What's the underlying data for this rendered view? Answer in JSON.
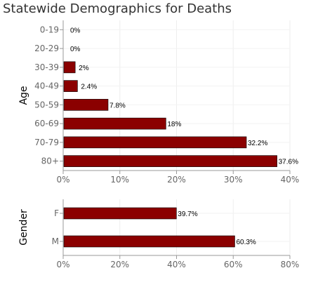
{
  "page_title": "Statewide Demographics for Deaths",
  "chart_data": [
    {
      "type": "bar",
      "orientation": "horizontal",
      "ylabel": "Age",
      "categories": [
        "0-19",
        "20-29",
        "30-39",
        "40-49",
        "50-59",
        "60-69",
        "70-79",
        "80+"
      ],
      "values": [
        0,
        0,
        2,
        2.4,
        7.8,
        18,
        32.2,
        37.6
      ],
      "value_labels": [
        "0%",
        "0%",
        "2%",
        "2.4%",
        "7.8%",
        "18%",
        "32.2%",
        "37.6%"
      ],
      "xlim": [
        0,
        40
      ],
      "x_ticks": [
        0,
        10,
        20,
        30,
        40
      ],
      "x_tick_labels": [
        "0%",
        "10%",
        "20%",
        "30%",
        "40%"
      ],
      "bar_color": "#8b0000",
      "grid": true
    },
    {
      "type": "bar",
      "orientation": "horizontal",
      "ylabel": "Gender",
      "categories": [
        "F",
        "M"
      ],
      "values": [
        39.7,
        60.3
      ],
      "value_labels": [
        "39.7%",
        "60.3%"
      ],
      "xlim": [
        0,
        80
      ],
      "x_ticks": [
        0,
        20,
        40,
        60,
        80
      ],
      "x_tick_labels": [
        "0%",
        "20%",
        "40%",
        "60%",
        "80%"
      ],
      "bar_color": "#8b0000",
      "grid": true
    }
  ]
}
